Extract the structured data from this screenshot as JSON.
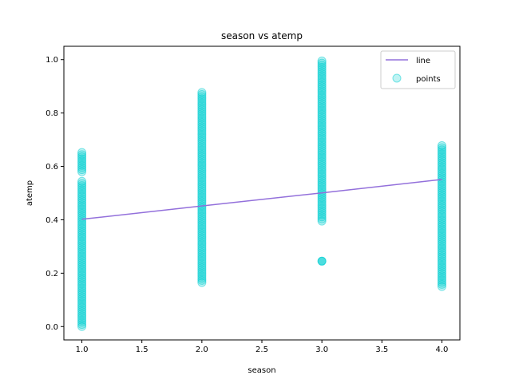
{
  "chart_data": {
    "type": "scatter",
    "title": "season vs atemp",
    "xlabel": "season",
    "ylabel": "atemp",
    "xlim": [
      0.85,
      4.15
    ],
    "ylim": [
      -0.05,
      1.05
    ],
    "xticks": [
      "1.0",
      "1.5",
      "2.0",
      "2.5",
      "3.0",
      "3.5",
      "4.0"
    ],
    "yticks": [
      "0.0",
      "0.2",
      "0.4",
      "0.6",
      "0.8",
      "1.0"
    ],
    "grid": false,
    "legend": {
      "placement": "top-right",
      "entries": [
        "line",
        "points"
      ]
    },
    "colors": {
      "line": "#9370DB",
      "points": "#00CED1"
    },
    "series": [
      {
        "name": "line",
        "kind": "line",
        "x": [
          1.0,
          2.0,
          3.0,
          4.0
        ],
        "y": [
          0.402,
          0.452,
          0.501,
          0.551
        ]
      },
      {
        "name": "points",
        "kind": "scatter",
        "groups": [
          {
            "x": 1.0,
            "ranges": [
              [
                0.0,
                0.55
              ],
              [
                0.58,
                0.655
              ]
            ]
          },
          {
            "x": 2.0,
            "ranges": [
              [
                0.165,
                0.88
              ]
            ]
          },
          {
            "x": 3.0,
            "ranges": [
              [
                0.395,
                1.0
              ]
            ],
            "outliers": [
              0.245
            ]
          },
          {
            "x": 4.0,
            "ranges": [
              [
                0.15,
                0.685
              ]
            ]
          }
        ]
      }
    ]
  }
}
